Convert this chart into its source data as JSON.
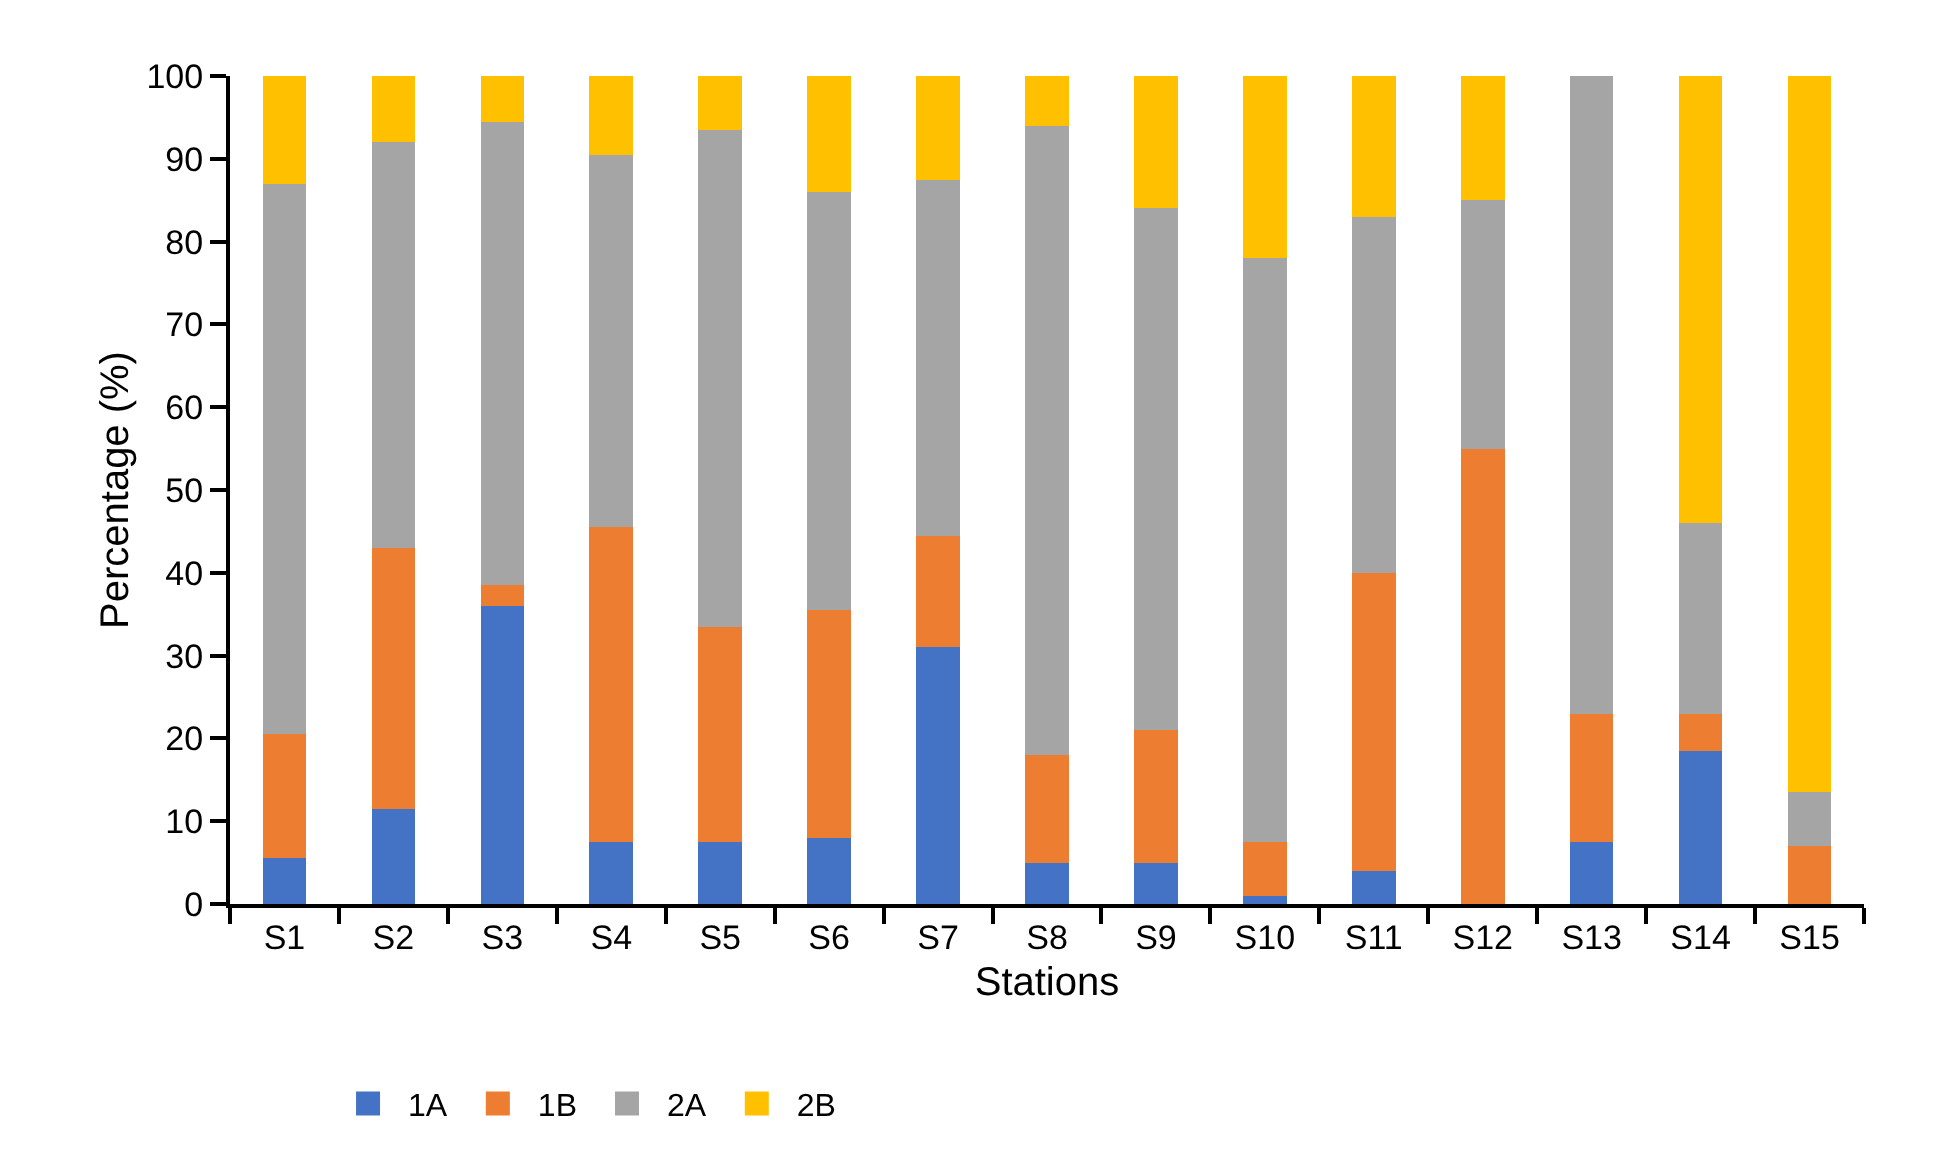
{
  "chart_data": {
    "type": "bar",
    "stacked": true,
    "xlabel": "Stations",
    "ylabel": "Percentage (%)",
    "categories": [
      "S1",
      "S2",
      "S3",
      "S4",
      "S5",
      "S6",
      "S7",
      "S8",
      "S9",
      "S10",
      "S11",
      "S12",
      "S13",
      "S14",
      "S15"
    ],
    "series": [
      {
        "name": "1A",
        "color": "#4472c4",
        "values": [
          5.5,
          11.5,
          36,
          7.5,
          7.5,
          8,
          31,
          5,
          5,
          1,
          4,
          0,
          7.5,
          18.5,
          0
        ]
      },
      {
        "name": "1B",
        "color": "#ed7d31",
        "values": [
          15,
          31.5,
          2.5,
          38,
          26,
          27.5,
          13.5,
          13,
          16,
          6.5,
          36,
          55,
          15.5,
          4.5,
          7
        ]
      },
      {
        "name": "2A",
        "color": "#a5a5a5",
        "values": [
          66.5,
          49,
          56,
          45,
          60,
          50.5,
          43,
          76,
          63,
          70.5,
          43,
          30,
          77,
          23,
          6.5
        ]
      },
      {
        "name": "2B",
        "color": "#ffc000",
        "values": [
          13,
          8,
          5.5,
          9.5,
          6.5,
          14,
          12.5,
          6,
          16,
          22,
          17,
          15,
          0,
          54,
          86.5
        ]
      }
    ],
    "ylim": [
      0,
      100
    ],
    "yticks": [
      0,
      10,
      20,
      30,
      40,
      50,
      60,
      70,
      80,
      90,
      100
    ],
    "grid": false,
    "legend": "bottom left"
  }
}
